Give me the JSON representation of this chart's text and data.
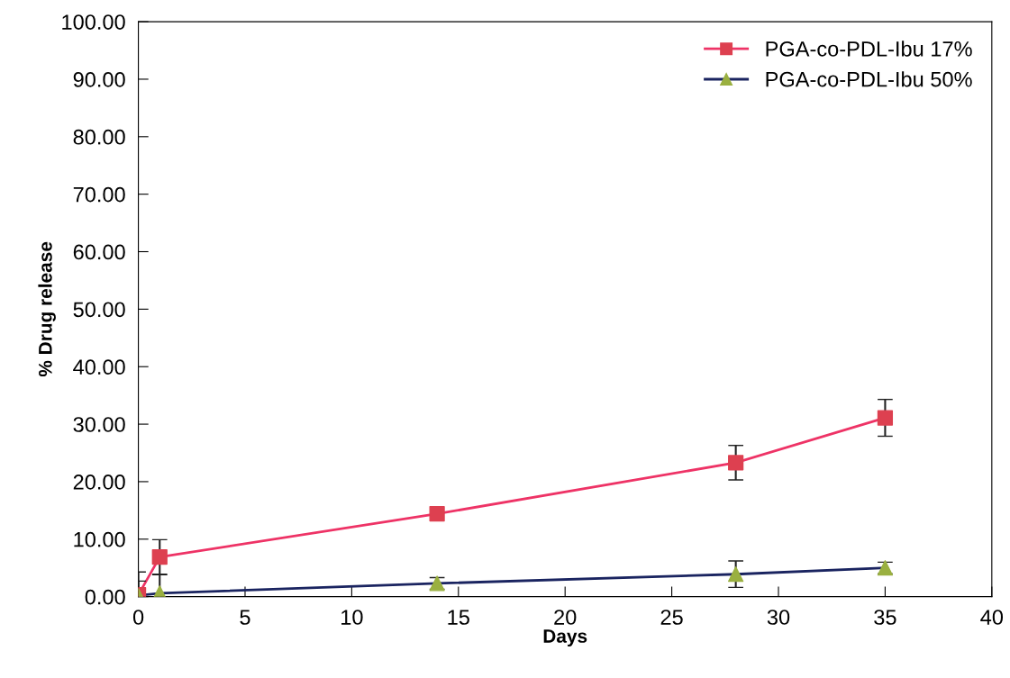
{
  "chart_data": {
    "type": "line",
    "xlabel": "Days",
    "ylabel": "% Drug release",
    "x": [
      0,
      1,
      14,
      28,
      35
    ],
    "series": [
      {
        "name": "PGA-co-PDL-Ibu 17%",
        "color": "#ee3366",
        "colors": [
          "#dd4050",
          "#dd4050",
          "#dd4050",
          "#dd4050",
          "#dd4050"
        ],
        "marker": "square",
        "values": [
          0.3,
          6.9,
          14.4,
          23.3,
          31.1
        ],
        "errors": [
          4,
          3,
          null,
          3,
          3.2
        ]
      },
      {
        "name": "PGA-co-PDL-Ibu 50%",
        "color": "#1a2460",
        "colors": [
          "#9ab040",
          "#9ab040",
          "#9ab040",
          "#9ab040",
          "#9ab040"
        ],
        "marker": "triangle",
        "values": [
          0.2,
          0.6,
          2.3,
          3.9,
          5.0
        ],
        "errors": [
          2.5,
          3.2,
          1,
          2.3,
          1
        ]
      }
    ],
    "xlim": [
      0,
      40
    ],
    "xticks": [
      0,
      5,
      10,
      15,
      20,
      25,
      30,
      35,
      40
    ],
    "ylim": [
      0,
      100
    ],
    "yticks": [
      {
        "value": 0,
        "label": "0.00"
      },
      {
        "value": 10,
        "label": "10.00"
      },
      {
        "value": 20,
        "label": "20.00"
      },
      {
        "value": 30,
        "label": "30.00"
      },
      {
        "value": 40,
        "label": "40.00"
      },
      {
        "value": 50,
        "label": "50.00"
      },
      {
        "value": 60,
        "label": "60.00"
      },
      {
        "value": 70,
        "label": "70.00"
      },
      {
        "value": 80,
        "label": "80.00"
      },
      {
        "value": 90,
        "label": "90.00"
      },
      {
        "value": 100,
        "label": "100.00"
      }
    ],
    "grid": false,
    "legend": "top right",
    "line_style": "solid"
  }
}
